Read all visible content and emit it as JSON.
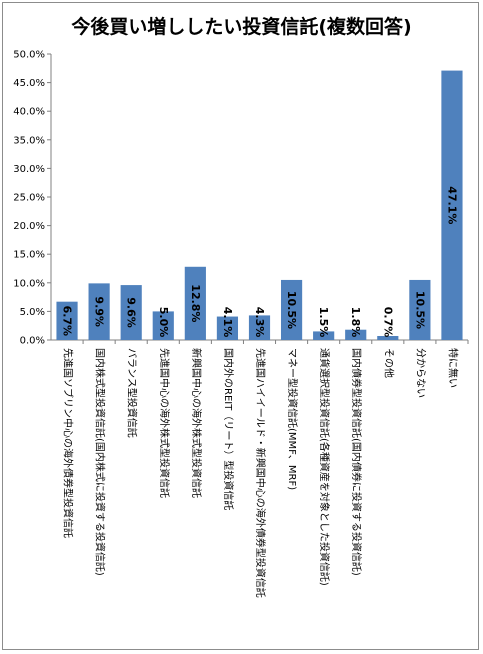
{
  "chart_data": {
    "type": "bar",
    "title": "今後買い増ししたい投資信託(複数回答)",
    "xlabel": "",
    "ylabel": "",
    "ylim": [
      0,
      50
    ],
    "yticks": [
      "0.0%",
      "5.0%",
      "10.0%",
      "15.0%",
      "20.0%",
      "25.0%",
      "30.0%",
      "35.0%",
      "40.0%",
      "45.0%",
      "50.0%"
    ],
    "grid": false,
    "legend": "none",
    "bar_color": "#4f81bd",
    "categories": [
      "先進国ソブリン中心の海外債券型投資信託",
      "国内株式型投資信託(国内株式に投資する投資信託)",
      "バランス型投資信託",
      "先進国中心の海外株式型投資信託",
      "新興国中心の海外株式型投資信託",
      "国内外のREIT（リート）型投資信託",
      "先進国ハイイールド・新興国中心の海外債券型投資信託",
      "マネー型投資信託(MMF、MRF)",
      "通貨選択型投資信託(各種資産を対象とした投資信託)",
      "国内債券型投資信託(国内債券に投資する投資信託)",
      "その他",
      "分からない",
      "特に無い"
    ],
    "values": [
      6.7,
      9.9,
      9.6,
      5.0,
      12.8,
      4.1,
      4.3,
      10.5,
      1.5,
      1.8,
      0.7,
      10.5,
      47.1
    ],
    "data_labels": [
      "6.7%",
      "9.9%",
      "9.6%",
      "5.0%",
      "12.8%",
      "4.1%",
      "4.3%",
      "10.5%",
      "1.5%",
      "1.8%",
      "0.7%",
      "10.5%",
      "47.1%"
    ]
  }
}
